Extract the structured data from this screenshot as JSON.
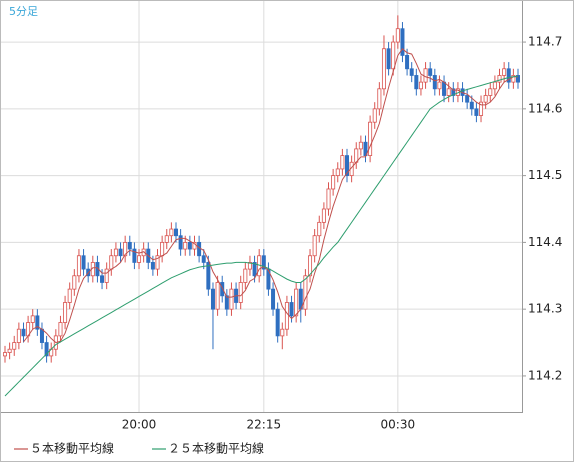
{
  "chart_data": {
    "type": "candlestick",
    "title": "5分足",
    "categories": [
      null,
      null,
      null,
      null,
      null,
      null,
      null,
      null,
      null,
      null,
      null,
      null,
      null,
      null,
      null,
      null,
      null,
      null,
      null,
      null,
      null,
      null,
      null,
      null,
      null,
      null,
      null,
      null,
      null,
      "20:00",
      null,
      null,
      null,
      null,
      null,
      null,
      null,
      null,
      null,
      null,
      null,
      null,
      null,
      null,
      null,
      null,
      null,
      null,
      null,
      null,
      null,
      null,
      null,
      null,
      null,
      null,
      "22:15",
      null,
      null,
      null,
      null,
      null,
      null,
      null,
      null,
      null,
      null,
      null,
      null,
      null,
      null,
      null,
      null,
      null,
      null,
      null,
      null,
      null,
      null,
      null,
      null,
      null,
      null,
      null,
      null,
      "00:30",
      null,
      null,
      null,
      null,
      null,
      null,
      null,
      null,
      null,
      null,
      null,
      null,
      null,
      null,
      null,
      null,
      null,
      null,
      null,
      null,
      null,
      null,
      null,
      null,
      null,
      null
    ],
    "open": [
      114.23,
      114.235,
      114.24,
      114.25,
      114.27,
      114.26,
      114.28,
      114.29,
      114.27,
      114.25,
      114.23,
      114.24,
      114.26,
      114.28,
      114.31,
      114.33,
      114.35,
      114.38,
      114.36,
      114.35,
      114.37,
      114.35,
      114.34,
      114.36,
      114.38,
      114.39,
      114.38,
      114.4,
      114.39,
      114.37,
      114.38,
      114.39,
      114.37,
      114.36,
      114.38,
      114.4,
      114.41,
      114.42,
      114.41,
      114.39,
      114.4,
      114.39,
      114.4,
      114.38,
      114.37,
      114.33,
      114.3,
      114.34,
      114.32,
      114.3,
      114.33,
      114.31,
      114.34,
      114.36,
      114.37,
      114.35,
      114.38,
      114.36,
      114.33,
      114.3,
      114.26,
      114.27,
      114.31,
      114.29,
      114.33,
      114.3,
      114.35,
      114.38,
      114.41,
      114.43,
      114.45,
      114.48,
      114.5,
      114.51,
      114.53,
      114.5,
      114.52,
      114.54,
      114.55,
      114.53,
      114.58,
      114.6,
      114.63,
      114.69,
      114.66,
      114.7,
      114.72,
      114.68,
      114.66,
      114.65,
      114.63,
      114.64,
      114.66,
      114.65,
      114.63,
      114.64,
      114.62,
      114.63,
      114.62,
      114.63,
      114.62,
      114.61,
      114.6,
      114.59,
      114.61,
      114.62,
      114.63,
      114.64,
      114.65,
      114.66,
      114.64,
      114.65
    ],
    "high": [
      114.245,
      114.25,
      114.26,
      114.28,
      114.28,
      114.29,
      114.3,
      114.3,
      114.28,
      114.26,
      114.25,
      114.27,
      114.29,
      114.32,
      114.34,
      114.36,
      114.39,
      114.39,
      114.37,
      114.38,
      114.38,
      114.36,
      114.37,
      114.39,
      114.4,
      114.4,
      114.41,
      114.41,
      114.4,
      114.39,
      114.4,
      114.4,
      114.38,
      114.39,
      114.41,
      114.42,
      114.43,
      114.43,
      114.42,
      114.41,
      114.41,
      114.41,
      114.41,
      114.39,
      114.38,
      114.34,
      114.35,
      114.35,
      114.33,
      114.34,
      114.34,
      114.35,
      114.37,
      114.38,
      114.38,
      114.39,
      114.39,
      114.37,
      114.34,
      114.31,
      114.28,
      114.32,
      114.32,
      114.34,
      114.34,
      114.36,
      114.39,
      114.42,
      114.44,
      114.46,
      114.49,
      114.51,
      114.52,
      114.54,
      114.54,
      114.53,
      114.55,
      114.56,
      114.56,
      114.59,
      114.61,
      114.64,
      114.71,
      114.7,
      114.71,
      114.74,
      114.73,
      114.69,
      114.67,
      114.66,
      114.65,
      114.67,
      114.67,
      114.66,
      114.65,
      114.65,
      114.64,
      114.64,
      114.64,
      114.64,
      114.63,
      114.62,
      114.61,
      114.62,
      114.63,
      114.64,
      114.65,
      114.66,
      114.67,
      114.67,
      114.66,
      114.66
    ],
    "low": [
      114.22,
      114.225,
      114.23,
      114.24,
      114.25,
      114.25,
      114.27,
      114.26,
      114.24,
      114.22,
      114.22,
      114.23,
      114.25,
      114.27,
      114.3,
      114.32,
      114.34,
      114.35,
      114.34,
      114.34,
      114.34,
      114.33,
      114.33,
      114.35,
      114.37,
      114.37,
      114.37,
      114.38,
      114.36,
      114.36,
      114.37,
      114.36,
      114.35,
      114.35,
      114.37,
      114.39,
      114.4,
      114.4,
      114.38,
      114.38,
      114.38,
      114.38,
      114.37,
      114.36,
      114.32,
      114.24,
      114.29,
      114.31,
      114.29,
      114.29,
      114.3,
      114.3,
      114.33,
      114.35,
      114.34,
      114.34,
      114.35,
      114.32,
      114.29,
      114.25,
      114.24,
      114.26,
      114.28,
      114.28,
      114.28,
      114.29,
      114.34,
      114.37,
      114.4,
      114.42,
      114.44,
      114.47,
      114.49,
      114.5,
      114.49,
      114.49,
      114.51,
      114.53,
      114.52,
      114.52,
      114.57,
      114.59,
      114.62,
      114.65,
      114.65,
      114.69,
      114.67,
      114.65,
      114.64,
      114.62,
      114.62,
      114.63,
      114.64,
      114.62,
      114.62,
      114.61,
      114.61,
      114.61,
      114.61,
      114.61,
      114.6,
      114.59,
      114.58,
      114.58,
      114.6,
      114.61,
      114.62,
      114.63,
      114.64,
      114.63,
      114.63,
      114.63
    ],
    "close": [
      114.235,
      114.24,
      114.25,
      114.27,
      114.26,
      114.28,
      114.29,
      114.27,
      114.25,
      114.23,
      114.24,
      114.26,
      114.28,
      114.31,
      114.33,
      114.35,
      114.38,
      114.36,
      114.35,
      114.37,
      114.35,
      114.34,
      114.36,
      114.38,
      114.39,
      114.38,
      114.4,
      114.39,
      114.37,
      114.38,
      114.39,
      114.37,
      114.36,
      114.38,
      114.4,
      114.41,
      114.42,
      114.41,
      114.39,
      114.4,
      114.39,
      114.4,
      114.38,
      114.37,
      114.33,
      114.3,
      114.34,
      114.32,
      114.3,
      114.33,
      114.31,
      114.34,
      114.36,
      114.37,
      114.35,
      114.38,
      114.36,
      114.33,
      114.3,
      114.26,
      114.27,
      114.31,
      114.29,
      114.33,
      114.3,
      114.35,
      114.38,
      114.41,
      114.43,
      114.45,
      114.48,
      114.5,
      114.51,
      114.53,
      114.5,
      114.52,
      114.54,
      114.55,
      114.53,
      114.58,
      114.6,
      114.63,
      114.69,
      114.66,
      114.7,
      114.72,
      114.68,
      114.66,
      114.65,
      114.63,
      114.64,
      114.66,
      114.65,
      114.63,
      114.64,
      114.62,
      114.63,
      114.62,
      114.63,
      114.62,
      114.61,
      114.6,
      114.59,
      114.61,
      114.62,
      114.63,
      114.64,
      114.65,
      114.66,
      114.64,
      114.65,
      114.64
    ],
    "up_color": "#d9534f",
    "down_color": "#2f6fc0",
    "series": [
      {
        "name": "５本移動平均線",
        "color": "#c0504d",
        "values": [
          null,
          null,
          null,
          null,
          114.251,
          114.26,
          114.27,
          114.274,
          114.27,
          114.264,
          114.256,
          114.25,
          114.252,
          114.264,
          114.284,
          114.306,
          114.33,
          114.346,
          114.354,
          114.362,
          114.362,
          114.354,
          114.354,
          114.36,
          114.364,
          114.37,
          114.382,
          114.388,
          114.386,
          114.384,
          114.386,
          114.38,
          114.374,
          114.376,
          114.38,
          114.384,
          114.394,
          114.404,
          114.406,
          114.406,
          114.402,
          114.398,
          114.392,
          114.388,
          114.374,
          114.356,
          114.344,
          114.332,
          114.318,
          114.318,
          114.32,
          114.32,
          114.328,
          114.342,
          114.346,
          114.36,
          114.364,
          114.358,
          114.344,
          114.326,
          114.304,
          114.294,
          114.286,
          114.292,
          114.3,
          114.316,
          114.33,
          114.354,
          114.374,
          114.404,
          114.43,
          114.454,
          114.474,
          114.494,
          114.504,
          114.512,
          114.52,
          114.528,
          114.528,
          114.544,
          114.56,
          114.578,
          114.606,
          114.632,
          114.656,
          114.68,
          114.69,
          114.684,
          114.682,
          114.668,
          114.652,
          114.648,
          114.646,
          114.642,
          114.644,
          114.64,
          114.634,
          114.628,
          114.628,
          114.624,
          114.622,
          114.616,
          114.61,
          114.606,
          114.606,
          114.61,
          114.618,
          114.63,
          114.64,
          114.644,
          114.648,
          114.648
        ]
      },
      {
        "name": "２５本移動平均線",
        "color": "#2e9e6e",
        "values": [
          114.17,
          114.177,
          114.184,
          114.191,
          114.198,
          114.205,
          114.212,
          114.219,
          114.226,
          114.233,
          114.24,
          114.247,
          114.251,
          114.255,
          114.259,
          114.263,
          114.267,
          114.271,
          114.275,
          114.279,
          114.283,
          114.287,
          114.291,
          114.295,
          114.299,
          114.303,
          114.307,
          114.311,
          114.315,
          114.319,
          114.323,
          114.327,
          114.331,
          114.335,
          114.339,
          114.343,
          114.347,
          114.35,
          114.353,
          114.356,
          114.359,
          114.361,
          114.363,
          114.364,
          114.365,
          114.366,
          114.367,
          114.368,
          114.369,
          114.369,
          114.37,
          114.37,
          114.37,
          114.369,
          114.368,
          114.366,
          114.364,
          114.361,
          114.357,
          114.353,
          114.349,
          114.345,
          114.342,
          114.34,
          114.34,
          114.345,
          114.352,
          114.36,
          114.368,
          114.377,
          114.385,
          114.393,
          114.4,
          114.41,
          114.42,
          114.43,
          114.44,
          114.45,
          114.46,
          114.47,
          114.48,
          114.49,
          114.5,
          114.51,
          114.52,
          114.53,
          114.54,
          114.55,
          114.56,
          114.57,
          114.58,
          114.59,
          114.6,
          114.605,
          114.61,
          114.614,
          114.618,
          114.621,
          114.624,
          114.627,
          114.629,
          114.631,
          114.633,
          114.635,
          114.637,
          114.639,
          114.641,
          114.643,
          114.645,
          114.647,
          114.648,
          114.649
        ]
      }
    ],
    "ylim": [
      114.146,
      114.763
    ],
    "yticks": [
      114.2,
      114.3,
      114.4,
      114.5,
      114.6,
      114.7
    ],
    "grid": true
  }
}
